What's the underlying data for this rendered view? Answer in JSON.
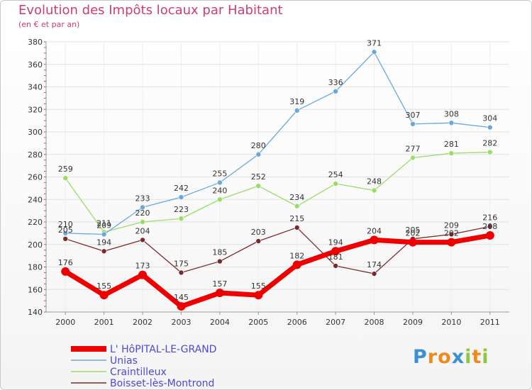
{
  "chart_data": {
    "type": "line",
    "title": "Evolution des Impôts locaux par Habitant",
    "subtitle": "(en € et par an)",
    "x": [
      "2000",
      "2001",
      "2002",
      "2003",
      "2004",
      "2005",
      "2006",
      "2007",
      "2008",
      "2009",
      "2010",
      "2011"
    ],
    "ylim": [
      140,
      380
    ],
    "yticks": [
      140,
      160,
      180,
      200,
      220,
      240,
      260,
      280,
      300,
      320,
      340,
      360,
      380
    ],
    "grid": true,
    "legend": "bottom-left",
    "series": [
      {
        "name": "L' HôPITAL-LE-GRAND",
        "color": "#ee0000",
        "values": [
          176,
          155,
          173,
          145,
          157,
          155,
          182,
          194,
          204,
          202,
          202,
          208
        ]
      },
      {
        "name": "Unias",
        "color": "#6aa8da",
        "values": [
          210,
          209,
          233,
          242,
          255,
          280,
          319,
          336,
          371,
          307,
          308,
          304
        ]
      },
      {
        "name": "Craintilleux",
        "color": "#99dd66",
        "values": [
          259,
          211,
          220,
          223,
          240,
          252,
          234,
          254,
          248,
          277,
          281,
          282
        ]
      },
      {
        "name": "Boisset-lès-Montrond",
        "color": "#7a2a2a",
        "values": [
          205,
          194,
          204,
          175,
          185,
          203,
          215,
          181,
          174,
          205,
          209,
          216
        ]
      }
    ]
  },
  "brand": {
    "letters": [
      "P",
      "r",
      "o",
      "x",
      "i",
      "t",
      "i"
    ],
    "colors": [
      "#3b8fd4",
      "#f08a1c",
      "#f08a1c",
      "#3b8fd4",
      "#8dc63f",
      "#f08a1c",
      "#8dc63f"
    ]
  }
}
